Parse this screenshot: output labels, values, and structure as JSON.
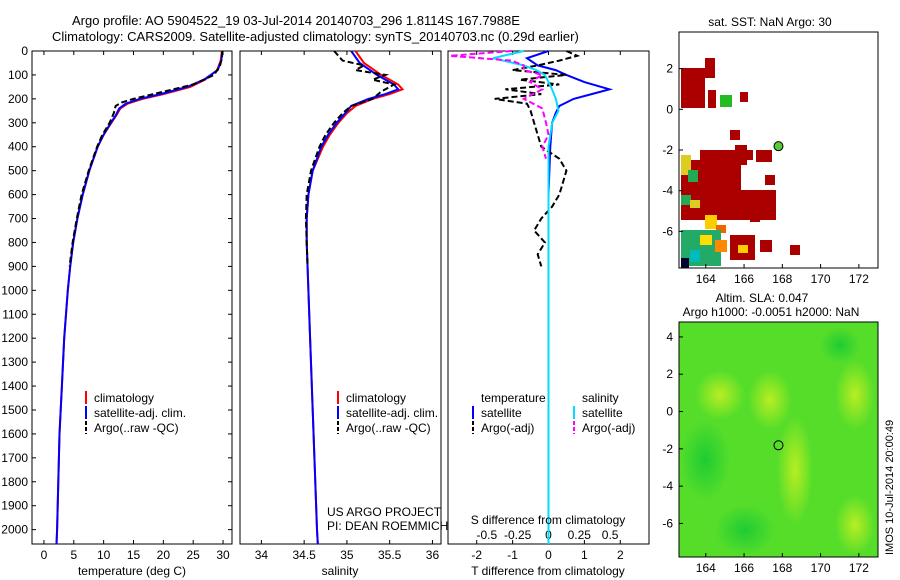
{
  "header": {
    "line1": "Argo profile: AO 5904522_19 03-Jul-2014 20140703_296 1.8114S 167.7988E",
    "line2": "Climatology: CARS2009. Satellite-adjusted climatology: synTS_20140703.nc (0.29d earlier)"
  },
  "depth_axis": {
    "ticks": [
      0,
      100,
      200,
      300,
      400,
      500,
      600,
      700,
      800,
      900,
      1000,
      1100,
      1200,
      1300,
      1400,
      1500,
      1600,
      1700,
      1800,
      1900,
      2000
    ],
    "labels": [
      "0",
      "100",
      "200",
      "300",
      "400",
      "500",
      "600",
      "700",
      "800",
      "900",
      "1000",
      "1100",
      "1200",
      "1300",
      "1400",
      "1500",
      "1600",
      "1700",
      "1800",
      "1900",
      "2000"
    ]
  },
  "colors": {
    "climatology": "#ff0000",
    "satellite": "#0000ff",
    "argo": "#000000",
    "satellite_s": "#00ddff",
    "argo_s": "#ff00ff"
  },
  "chart_data": [
    {
      "type": "line",
      "id": "temperature",
      "title": "",
      "xlabel": "temperature (deg C)",
      "ylabel": "depth",
      "xlim": [
        -2,
        31.5
      ],
      "ylim": [
        2060,
        0
      ],
      "xticks": [
        0,
        5,
        10,
        15,
        20,
        25,
        30
      ],
      "xtick_labels": [
        "0",
        "5",
        "10",
        "15",
        "20",
        "25",
        "30"
      ],
      "legend": [
        "climatology",
        "satellite-adj. clim.",
        "Argo(..raw -QC)"
      ],
      "series": [
        {
          "name": "climatology",
          "depth": [
            0,
            40,
            80,
            120,
            150,
            180,
            200,
            220,
            240,
            270,
            300,
            350,
            400,
            500,
            600,
            700,
            800,
            900,
            1000,
            1200,
            1400,
            1600,
            1800,
            2000,
            2060
          ],
          "values": [
            29.8,
            29.6,
            29.0,
            27.0,
            24.5,
            20.0,
            16.5,
            14.0,
            12.8,
            12.1,
            11.3,
            10.0,
            9.0,
            7.6,
            6.5,
            5.6,
            4.9,
            4.4,
            4.0,
            3.4,
            3.0,
            2.6,
            2.4,
            2.2,
            2.1
          ]
        },
        {
          "name": "satellite-adj. clim.",
          "depth": [
            0,
            40,
            80,
            120,
            150,
            180,
            200,
            220,
            240,
            270,
            300,
            350,
            400,
            500,
            600,
            700,
            800,
            900,
            1000,
            1200,
            1400,
            1600,
            1800,
            2000,
            2060
          ],
          "values": [
            29.9,
            29.7,
            29.1,
            26.8,
            24.0,
            19.5,
            16.0,
            13.7,
            12.6,
            12.0,
            11.2,
            10.0,
            9.0,
            7.6,
            6.5,
            5.6,
            4.9,
            4.4,
            4.0,
            3.4,
            3.0,
            2.6,
            2.4,
            2.2,
            2.1
          ]
        },
        {
          "name": "Argo(..raw -QC)",
          "depth": [
            0,
            30,
            60,
            100,
            140,
            170,
            200,
            215,
            230,
            260,
            300,
            350,
            400,
            500,
            600,
            700,
            800,
            900
          ],
          "values": [
            29.9,
            29.8,
            29.5,
            28.5,
            25.0,
            20.0,
            15.0,
            13.0,
            12.0,
            11.7,
            11.0,
            9.8,
            8.9,
            7.5,
            6.3,
            5.5,
            4.8,
            4.3
          ]
        }
      ]
    },
    {
      "type": "line",
      "id": "salinity",
      "title": "",
      "xlabel": "salinity",
      "ylabel": "depth",
      "xlim": [
        33.75,
        36.1
      ],
      "ylim": [
        2060,
        0
      ],
      "xticks": [
        34,
        34.5,
        35,
        35.5,
        36
      ],
      "xtick_labels": [
        "34",
        "34.5",
        "35",
        "35.5",
        "36"
      ],
      "legend": [
        "climatology",
        "satellite-adj. clim.",
        "Argo(..raw -QC)"
      ],
      "annotation": [
        "US ARGO PROJECT",
        "PI: DEAN ROEMMICH"
      ],
      "series": [
        {
          "name": "climatology",
          "depth": [
            0,
            50,
            100,
            140,
            160,
            180,
            200,
            230,
            260,
            300,
            350,
            400,
            500,
            600,
            700,
            800,
            1000,
            1200,
            1500,
            2000,
            2060
          ],
          "values": [
            35.1,
            35.2,
            35.4,
            35.6,
            35.65,
            35.5,
            35.3,
            35.1,
            35.0,
            34.9,
            34.8,
            34.72,
            34.6,
            34.55,
            34.53,
            34.53,
            34.55,
            34.57,
            34.6,
            34.65,
            34.66
          ]
        },
        {
          "name": "satellite-adj. clim.",
          "depth": [
            0,
            50,
            100,
            140,
            160,
            180,
            200,
            230,
            260,
            300,
            350,
            400,
            500,
            600,
            700,
            800,
            1000,
            1200,
            1500,
            2000,
            2060
          ],
          "values": [
            35.05,
            35.15,
            35.35,
            35.55,
            35.6,
            35.45,
            35.25,
            35.05,
            34.98,
            34.88,
            34.78,
            34.7,
            34.6,
            34.55,
            34.53,
            34.53,
            34.55,
            34.57,
            34.6,
            34.65,
            34.66
          ]
        },
        {
          "name": "Argo(..raw -QC)",
          "depth": [
            0,
            20,
            40,
            60,
            80,
            100,
            120,
            140,
            170,
            200,
            230,
            260,
            300,
            350,
            400,
            500,
            600,
            700,
            800,
            900
          ],
          "values": [
            34.85,
            34.9,
            34.95,
            35.2,
            35.1,
            35.45,
            35.3,
            35.55,
            35.4,
            35.3,
            35.05,
            34.95,
            34.85,
            34.75,
            34.68,
            34.58,
            34.53,
            34.52,
            34.53,
            34.54
          ]
        }
      ]
    },
    {
      "type": "line",
      "id": "difference",
      "title": "",
      "xlabel": "T difference from climatology",
      "x2label": "S difference from climatology",
      "xlim": [
        -2.8,
        2.8
      ],
      "ylim": [
        2060,
        0
      ],
      "xticks": [
        -2,
        -1,
        0,
        1,
        2
      ],
      "xtick_labels": [
        "-2",
        "-1",
        "0",
        "1",
        "2"
      ],
      "x2ticks": [
        -0.5,
        -0.25,
        0,
        0.25,
        0.5
      ],
      "x2tick_labels": [
        "-0.5",
        "-0.25",
        "0",
        "0.25",
        "0.5"
      ],
      "legend_headers": [
        "temperature",
        "salinity"
      ],
      "legend": [
        "satellite",
        "Argo(-adj)",
        "satellite",
        "Argo(-adj)"
      ],
      "series": [
        {
          "name": "temperature satellite",
          "depth": [
            0,
            30,
            60,
            80,
            100,
            130,
            160,
            180,
            200,
            230,
            260,
            300,
            400,
            600,
            800,
            1000,
            1500,
            2000,
            2060
          ],
          "values": [
            0,
            -0.6,
            -0.3,
            0.2,
            0.5,
            1.0,
            1.7,
            1.2,
            0.7,
            0.3,
            0.2,
            0.1,
            0.05,
            0.0,
            0.0,
            0.0,
            0.0,
            0.0,
            0.0
          ]
        },
        {
          "name": "temperature Argo(-adj)",
          "depth": [
            0,
            20,
            40,
            60,
            80,
            100,
            120,
            140,
            160,
            180,
            200,
            220,
            250,
            300,
            350,
            400,
            450,
            500,
            550,
            600,
            650,
            700,
            750,
            800,
            850,
            900
          ],
          "values": [
            0.5,
            0.8,
            0.3,
            -0.3,
            -1.0,
            0.5,
            -0.8,
            0.3,
            -1.2,
            -0.2,
            -1.5,
            -0.6,
            -0.5,
            -0.4,
            -0.3,
            -0.2,
            0.3,
            0.5,
            0.4,
            0.3,
            0.1,
            -0.2,
            -0.4,
            -0.1,
            -0.3,
            -0.2
          ]
        },
        {
          "name": "salinity satellite",
          "depth": [
            0,
            30,
            60,
            80,
            100,
            150,
            200,
            250,
            300,
            400,
            600,
            1000,
            2000,
            2060
          ],
          "values": [
            -0.2,
            -0.45,
            -0.2,
            -0.1,
            -0.03,
            0.02,
            0.06,
            0.08,
            0.03,
            0.0,
            0.0,
            0.0,
            0.0,
            0.0
          ]
        },
        {
          "name": "salinity Argo(-adj)",
          "depth": [
            0,
            10,
            20,
            40,
            60,
            80,
            100,
            130,
            160,
            200,
            240,
            300,
            350,
            400,
            450
          ],
          "values": [
            -0.3,
            -0.55,
            -0.8,
            -0.3,
            -0.2,
            -0.2,
            -0.05,
            -0.15,
            -0.05,
            -0.2,
            -0.05,
            -0.02,
            0.0,
            -0.05,
            -0.02
          ]
        }
      ]
    }
  ],
  "map_sst": {
    "title": "sat. SST: NaN Argo: 30",
    "xticks": [
      164,
      166,
      168,
      170,
      172
    ],
    "xtick_labels": [
      "164",
      "166",
      "168",
      "170",
      "172"
    ],
    "yticks": [
      2,
      0,
      -2,
      -4,
      -6
    ],
    "ytick_labels": [
      "2",
      "0",
      "-2",
      "-4",
      "-6"
    ],
    "xlim": [
      162.6,
      173.0
    ],
    "ylim": [
      -7.8,
      3.8
    ],
    "argo_position": {
      "lon": 167.7988,
      "lat": -1.8114
    },
    "marker_color": "#55cc33"
  },
  "map_sla": {
    "title1": "Altim. SLA: 0.047",
    "title2": "Argo h1000: -0.0051 h2000: NaN",
    "xticks": [
      164,
      166,
      168,
      170,
      172
    ],
    "xtick_labels": [
      "164",
      "166",
      "168",
      "170",
      "172"
    ],
    "yticks": [
      4,
      2,
      0,
      -2,
      -4,
      -6
    ],
    "ytick_labels": [
      "4",
      "2",
      "0",
      "-2",
      "-4",
      "-6"
    ],
    "xlim": [
      162.6,
      173.0
    ],
    "ylim": [
      -7.8,
      4.8
    ],
    "argo_position": {
      "lon": 167.7988,
      "lat": -1.8114
    }
  },
  "footer": {
    "stamp": "IMOS 10-Jul-2014 20:00:49"
  }
}
